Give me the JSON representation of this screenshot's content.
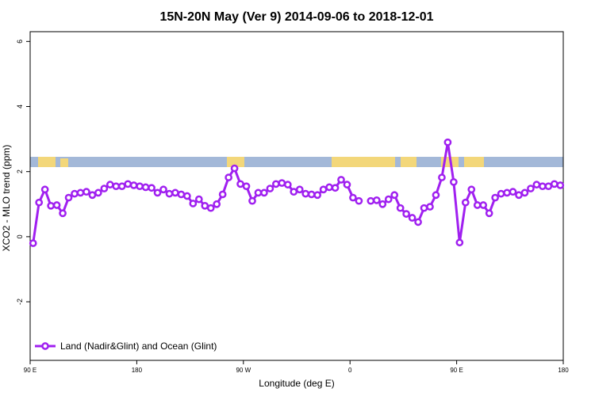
{
  "chart_data": {
    "type": "line",
    "title": "15N-20N May (Ver 9)   2014-09-06 to 2018-12-01",
    "x_label": "Longitude (deg E)",
    "y_label": "XCO2 - MLO trend (ppm)",
    "x": [
      92.5,
      97.5,
      102.5,
      107.5,
      112.5,
      117.5,
      122.5,
      127.5,
      132.5,
      137.5,
      142.5,
      147.5,
      152.5,
      157.5,
      162.5,
      167.5,
      172.5,
      177.5,
      182.5,
      187.5,
      192.5,
      197.5,
      202.5,
      207.5,
      212.5,
      217.5,
      222.5,
      227.5,
      232.5,
      237.5,
      242.5,
      247.5,
      252.5,
      257.5,
      262.5,
      267.5,
      272.5,
      277.5,
      282.5,
      287.5,
      292.5,
      297.5,
      302.5,
      307.5,
      312.5,
      317.5,
      322.5,
      327.5,
      332.5,
      337.5,
      342.5,
      347.5,
      352.5,
      357.5,
      362.5,
      367.5,
      372.5,
      377.5,
      382.5,
      387.5,
      392.5,
      397.5,
      402.5,
      407.5,
      412.5,
      417.5,
      422.5,
      427.5,
      432.5,
      437.5,
      442.5,
      447.5,
      452.5,
      457.5,
      462.5,
      467.5,
      472.5,
      477.5,
      482.5,
      487.5,
      492.5,
      497.5,
      502.5,
      507.5,
      512.5,
      517.5,
      522.5,
      527.5,
      532.5,
      537.5
    ],
    "series": [
      {
        "name": "Land (Nadir&Glint) and Ocean (Glint)",
        "color": "#a020f0",
        "values": [
          -0.2,
          1.05,
          1.45,
          0.95,
          0.97,
          0.72,
          1.2,
          1.32,
          1.35,
          1.38,
          1.28,
          1.35,
          1.48,
          1.6,
          1.55,
          1.55,
          1.62,
          1.58,
          1.55,
          1.52,
          1.5,
          1.35,
          1.45,
          1.32,
          1.35,
          1.3,
          1.25,
          1.02,
          1.15,
          0.95,
          0.88,
          1.0,
          1.3,
          1.82,
          2.1,
          1.62,
          1.55,
          1.1,
          1.35,
          1.35,
          1.48,
          1.62,
          1.65,
          1.6,
          1.38,
          1.45,
          1.32,
          1.3,
          1.28,
          1.45,
          1.52,
          1.5,
          1.75,
          1.6,
          1.2,
          1.1,
          null,
          1.1,
          1.12,
          1.0,
          1.15,
          1.28,
          0.88,
          0.7,
          0.58,
          0.45,
          0.88,
          0.92,
          1.28,
          1.82,
          2.9,
          1.68,
          -0.18,
          1.05,
          1.45,
          0.97,
          0.97,
          0.72,
          1.2,
          1.32,
          1.35,
          1.38,
          1.28,
          1.35,
          1.48,
          1.6,
          1.55,
          1.55,
          1.62,
          1.58
        ]
      }
    ],
    "xlim": [
      90,
      540
    ],
    "xticks": [
      {
        "value": 90,
        "label": "90 E"
      },
      180,
      {
        "value": 270,
        "label": "90 W"
      },
      {
        "value": 360,
        "label": "0"
      },
      {
        "value": 450,
        "label": "90 E"
      },
      {
        "value": 540,
        "label": "180"
      }
    ],
    "ylim": [
      -3.8,
      6.3
    ],
    "yticks": [
      -2,
      0,
      2,
      4,
      6
    ],
    "legend": "bottom-left",
    "grid": false
  }
}
